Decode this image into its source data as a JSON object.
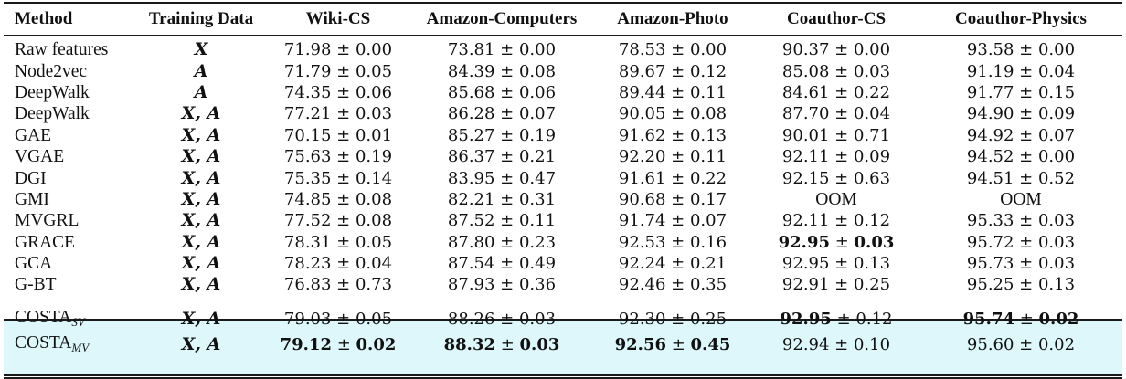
{
  "table": {
    "headers": [
      "Method",
      "Training Data",
      "Wiki-CS",
      "Amazon-Computers",
      "Amazon-Photo",
      "Coauthor-CS",
      "Coauthor-Physics"
    ],
    "baseline_rows": [
      {
        "method": "Raw features",
        "training": "X",
        "values": [
          {
            "text": "71.98 ± 0.00",
            "bold": "none"
          },
          {
            "text": "73.81 ± 0.00",
            "bold": "none"
          },
          {
            "text": "78.53 ± 0.00",
            "bold": "none"
          },
          {
            "text": "90.37 ± 0.00",
            "bold": "none"
          },
          {
            "text": "93.58 ± 0.00",
            "bold": "none"
          }
        ]
      },
      {
        "method": "Node2vec",
        "training": "A",
        "values": [
          {
            "text": "71.79 ± 0.05",
            "bold": "none"
          },
          {
            "text": "84.39 ± 0.08",
            "bold": "none"
          },
          {
            "text": "89.67 ± 0.12",
            "bold": "none"
          },
          {
            "text": "85.08 ± 0.03",
            "bold": "none"
          },
          {
            "text": "91.19 ± 0.04",
            "bold": "none"
          }
        ]
      },
      {
        "method": "DeepWalk",
        "training": "A",
        "values": [
          {
            "text": "74.35 ± 0.06",
            "bold": "none"
          },
          {
            "text": "85.68 ± 0.06",
            "bold": "none"
          },
          {
            "text": "89.44 ± 0.11",
            "bold": "none"
          },
          {
            "text": "84.61 ± 0.22",
            "bold": "none"
          },
          {
            "text": "91.77 ± 0.15",
            "bold": "none"
          }
        ]
      },
      {
        "method": "DeepWalk",
        "training": "X, A",
        "values": [
          {
            "text": "77.21 ± 0.03",
            "bold": "none"
          },
          {
            "text": "86.28 ± 0.07",
            "bold": "none"
          },
          {
            "text": "90.05 ± 0.08",
            "bold": "none"
          },
          {
            "text": "87.70 ± 0.04",
            "bold": "none"
          },
          {
            "text": "94.90 ± 0.09",
            "bold": "none"
          }
        ]
      },
      {
        "method": "GAE",
        "training": "X, A",
        "values": [
          {
            "text": "70.15 ± 0.01",
            "bold": "none"
          },
          {
            "text": "85.27 ± 0.19",
            "bold": "none"
          },
          {
            "text": "91.62 ± 0.13",
            "bold": "none"
          },
          {
            "text": "90.01 ± 0.71",
            "bold": "none"
          },
          {
            "text": "94.92 ± 0.07",
            "bold": "none"
          }
        ]
      },
      {
        "method": "VGAE",
        "training": "X, A",
        "values": [
          {
            "text": "75.63 ± 0.19",
            "bold": "none"
          },
          {
            "text": "86.37 ± 0.21",
            "bold": "none"
          },
          {
            "text": "92.20 ± 0.11",
            "bold": "none"
          },
          {
            "text": "92.11 ± 0.09",
            "bold": "none"
          },
          {
            "text": "94.52 ± 0.00",
            "bold": "none"
          }
        ]
      },
      {
        "method": "DGI",
        "training": "X, A",
        "values": [
          {
            "text": "75.35 ± 0.14",
            "bold": "none"
          },
          {
            "text": "83.95 ± 0.47",
            "bold": "none"
          },
          {
            "text": "91.61 ± 0.22",
            "bold": "none"
          },
          {
            "text": "92.15 ± 0.63",
            "bold": "none"
          },
          {
            "text": "94.51 ± 0.52",
            "bold": "none"
          }
        ]
      },
      {
        "method": "GMI",
        "training": "X, A",
        "values": [
          {
            "text": "74.85 ± 0.08",
            "bold": "none"
          },
          {
            "text": "82.21 ± 0.31",
            "bold": "none"
          },
          {
            "text": "90.68 ± 0.17",
            "bold": "none"
          },
          {
            "text": "OOM",
            "bold": "none"
          },
          {
            "text": "OOM",
            "bold": "none"
          }
        ]
      },
      {
        "method": "MVGRL",
        "training": "X, A",
        "values": [
          {
            "text": "77.52 ± 0.08",
            "bold": "none"
          },
          {
            "text": "87.52 ± 0.11",
            "bold": "none"
          },
          {
            "text": "91.74 ± 0.07",
            "bold": "none"
          },
          {
            "text": "92.11 ± 0.12",
            "bold": "none"
          },
          {
            "text": "95.33 ± 0.03",
            "bold": "none"
          }
        ]
      },
      {
        "method": "GRACE",
        "training": "X, A",
        "values": [
          {
            "text": "78.31 ± 0.05",
            "bold": "none"
          },
          {
            "text": "87.80 ± 0.23",
            "bold": "none"
          },
          {
            "text": "92.53 ± 0.16",
            "bold": "none"
          },
          {
            "text": "92.95 ± 0.03",
            "bold": "full"
          },
          {
            "text": "95.72 ± 0.03",
            "bold": "none"
          }
        ]
      },
      {
        "method": "GCA",
        "training": "X, A",
        "values": [
          {
            "text": "78.23 ± 0.04",
            "bold": "none"
          },
          {
            "text": "87.54 ± 0.49",
            "bold": "none"
          },
          {
            "text": "92.24 ± 0.21",
            "bold": "none"
          },
          {
            "text": "92.95 ± 0.13",
            "bold": "none"
          },
          {
            "text": "95.73 ± 0.03",
            "bold": "none"
          }
        ]
      },
      {
        "method": "G-BT",
        "training": "X, A",
        "values": [
          {
            "text": "76.83 ± 0.73",
            "bold": "none"
          },
          {
            "text": "87.93 ± 0.36",
            "bold": "none"
          },
          {
            "text": "92.46 ± 0.35",
            "bold": "none"
          },
          {
            "text": "92.91 ± 0.25",
            "bold": "none"
          },
          {
            "text": "95.25 ± 0.13",
            "bold": "none"
          }
        ]
      }
    ],
    "ours_rows": [
      {
        "method": "COSTA",
        "subscript": "SV",
        "training": "X, A",
        "values": [
          {
            "text": "79.03 ± 0.05",
            "bold": "none"
          },
          {
            "text": "88.26 ± 0.03",
            "bold": "none"
          },
          {
            "text": "92.30 ± 0.25",
            "bold": "none"
          },
          {
            "text": "92.95 ± 0.12",
            "bold": "mean"
          },
          {
            "text": "95.74 ± 0.02",
            "bold": "full"
          }
        ]
      },
      {
        "method": "COSTA",
        "subscript": "MV",
        "training": "X, A",
        "values": [
          {
            "text": "79.12 ± 0.02",
            "bold": "full"
          },
          {
            "text": "88.32 ± 0.03",
            "bold": "full"
          },
          {
            "text": "92.56 ± 0.45",
            "bold": "full"
          },
          {
            "text": "92.94 ± 0.10",
            "bold": "none"
          },
          {
            "text": "95.60 ± 0.02",
            "bold": "none"
          }
        ]
      }
    ],
    "highlight_color": "#ddf7fb"
  }
}
